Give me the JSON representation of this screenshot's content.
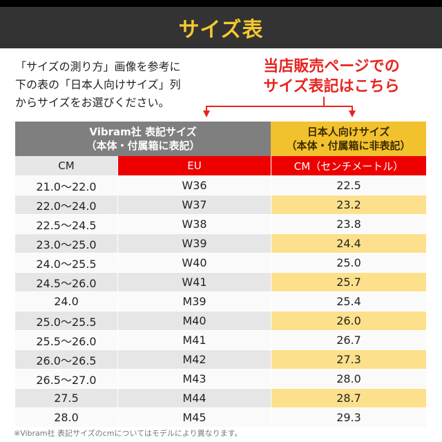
{
  "header": {
    "title": "サイズ表"
  },
  "intro": {
    "lines": [
      "「サイズの測り方」画像を参考に",
      "下の表の「日本人向けサイズ」列",
      "からサイズをお選びください。"
    ]
  },
  "callout": {
    "lines": [
      "当店販売ページでの",
      "サイズ表記はこちら"
    ],
    "color": "#e8231f"
  },
  "table": {
    "group_headers": {
      "vibram": {
        "line1": "Vibram社 表記サイズ",
        "line2": "（本体・付属箱に表記）"
      },
      "japanese": {
        "line1": "日本人向けサイズ",
        "line2": "（本体・付属箱に非表記）"
      }
    },
    "columns": [
      "CM",
      "EU",
      "CM（センチメートル）"
    ],
    "rows": [
      [
        "21.0～22.0",
        "W36",
        "22.5"
      ],
      [
        "22.0～24.0",
        "W37",
        "23.2"
      ],
      [
        "22.5～24.5",
        "W38",
        "23.8"
      ],
      [
        "23.0～25.0",
        "W39",
        "24.4"
      ],
      [
        "24.0～25.5",
        "W40",
        "25.0"
      ],
      [
        "24.5～26.0",
        "W41",
        "25.7"
      ],
      [
        "24.0",
        "M39",
        "25.4"
      ],
      [
        "25.0～25.5",
        "M40",
        "26.0"
      ],
      [
        "25.5～26.0",
        "M41",
        "26.7"
      ],
      [
        "26.0～26.5",
        "M42",
        "27.3"
      ],
      [
        "26.5～27.0",
        "M43",
        "28.0"
      ],
      [
        "27.5",
        "M44",
        "28.7"
      ],
      [
        "28.0",
        "M45",
        "29.3"
      ]
    ]
  },
  "note": "※Vibram社 表記サイズのcmについてはモデルにより異なります。",
  "colors": {
    "header_bg": "#333333",
    "title": "#f5c830",
    "red": "#ee0000",
    "gold": "#f2c12e",
    "gray": "#7f7f7f",
    "highlight": "#fde08c"
  }
}
